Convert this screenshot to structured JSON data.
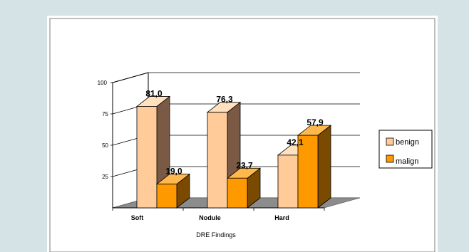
{
  "chart_data": {
    "type": "bar",
    "categories": [
      "Soft",
      "Nodule",
      "Hard"
    ],
    "series": [
      {
        "name": "benign",
        "values": [
          81.0,
          76.3,
          42.1
        ],
        "labels": [
          "81,0",
          "76,3",
          "42,1"
        ]
      },
      {
        "name": "malign",
        "values": [
          19.0,
          23.7,
          57.9
        ],
        "labels": [
          "19,0",
          "23,7",
          "57,9"
        ]
      }
    ],
    "xlabel": "DRE Findings",
    "ylabel": "",
    "ylim": [
      0,
      100
    ],
    "yticks": [
      "25",
      "50",
      "75",
      "100"
    ],
    "grid": true,
    "legend": "right",
    "colors": {
      "benign_front": "#ffcc99",
      "benign_top": "#ffe0bf",
      "benign_side": "#7a5a44",
      "malign_front": "#ff9900",
      "malign_top": "#ffb84d",
      "malign_side": "#7a4a00",
      "floor": "#8c8c8c",
      "frame": "#ffffff",
      "background": "#d5e3e6"
    }
  }
}
